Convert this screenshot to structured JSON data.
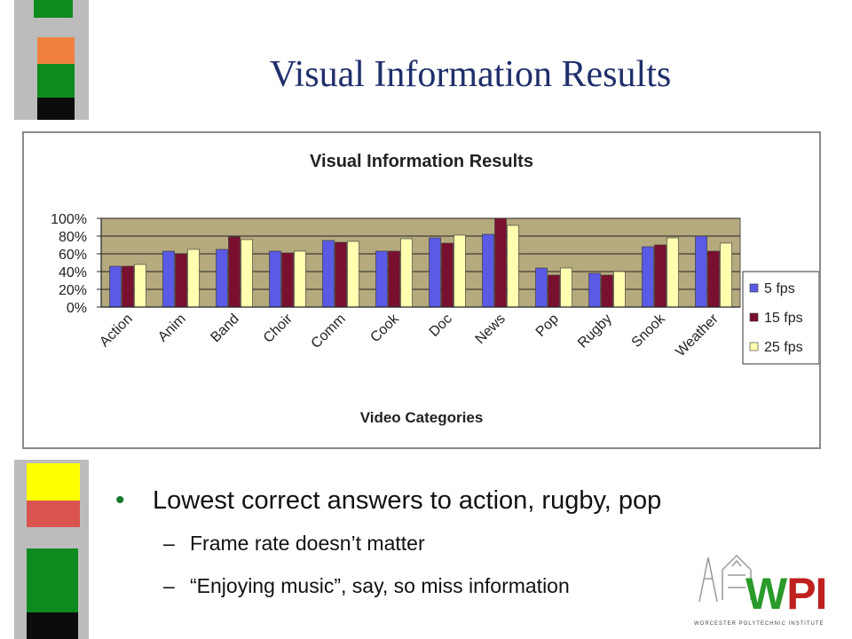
{
  "slide": {
    "title": "Visual Information Results",
    "bullet_main": "Lowest correct answers to action, rugby, pop",
    "bullet_sub1": "Frame rate doesn’t matter",
    "bullet_sub2": "“Enjoying music”, say, so miss information",
    "dash": "–",
    "bullet_dot": "•"
  },
  "logo": {
    "w": "W",
    "pi": "PI",
    "subtitle": "WORCESTER POLYTECHNIC INSTITUTE",
    "colors": {
      "green": "#2a9a2a",
      "red": "#c02020"
    }
  },
  "deco_colors": {
    "gray": "#bcbcbc",
    "green": "#0f8a1f",
    "orange": "#f08040",
    "black": "#0c0c0c",
    "yellow": "#ffff00",
    "red": "#d9534f"
  },
  "chart_data": {
    "type": "bar",
    "title": "Visual Information Results",
    "xlabel": "Video Categories",
    "ylabel": "",
    "ylim": [
      0,
      100
    ],
    "yticks": [
      "0%",
      "20%",
      "40%",
      "60%",
      "80%",
      "100%"
    ],
    "grid": true,
    "legend_position": "right",
    "categories": [
      "Action",
      "Anim",
      "Band",
      "Choir",
      "Comm",
      "Cook",
      "Doc",
      "News",
      "Pop",
      "Rugby",
      "Snook",
      "Weather"
    ],
    "series": [
      {
        "name": "5 fps",
        "color": "#5a5ae6",
        "values": [
          46,
          63,
          65,
          63,
          75,
          63,
          78,
          82,
          44,
          38,
          68,
          80
        ]
      },
      {
        "name": "15 fps",
        "color": "#7a1030",
        "values": [
          46,
          60,
          79,
          61,
          73,
          63,
          72,
          100,
          36,
          36,
          70,
          63
        ]
      },
      {
        "name": "25 fps",
        "color": "#ffffb0",
        "values": [
          48,
          65,
          76,
          63,
          74,
          77,
          81,
          92,
          44,
          40,
          78,
          72
        ]
      }
    ]
  }
}
